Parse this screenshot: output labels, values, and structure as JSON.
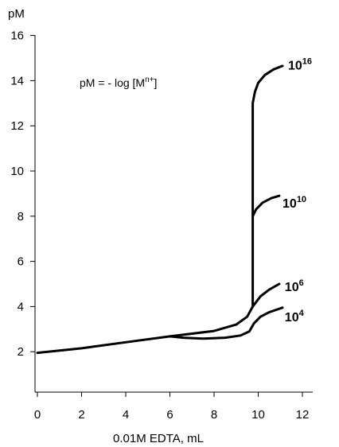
{
  "chart_data": {
    "type": "line",
    "title": "",
    "xlabel": "0.01M EDTA, mL",
    "ylabel": "pM",
    "xlim": [
      0,
      12.5
    ],
    "ylim": [
      0,
      16
    ],
    "x_ticks": [
      0,
      2,
      4,
      6,
      8,
      10,
      12
    ],
    "y_ticks": [
      2,
      4,
      6,
      8,
      10,
      12,
      14,
      16
    ],
    "grid": false,
    "annotation": {
      "prefix": "pM = - log [M",
      "sup": "n+",
      "suffix": "]"
    },
    "series": [
      {
        "label_base": "10",
        "label_exp": "16",
        "label_at": [
          11.35,
          14.7
        ],
        "points": [
          [
            0,
            1.95
          ],
          [
            2,
            2.15
          ],
          [
            4,
            2.42
          ],
          [
            6,
            2.68
          ],
          [
            7,
            2.8
          ],
          [
            8,
            2.92
          ],
          [
            9,
            3.2
          ],
          [
            9.5,
            3.55
          ],
          [
            9.75,
            4.0
          ],
          [
            9.75,
            13.0
          ],
          [
            9.85,
            13.5
          ],
          [
            10.0,
            13.9
          ],
          [
            10.3,
            14.25
          ],
          [
            10.7,
            14.5
          ],
          [
            11.1,
            14.65
          ]
        ]
      },
      {
        "label_base": "10",
        "label_exp": "10",
        "label_at": [
          11.1,
          8.6
        ],
        "points": [
          [
            9.75,
            8.0
          ],
          [
            9.9,
            8.3
          ],
          [
            10.2,
            8.6
          ],
          [
            10.6,
            8.8
          ],
          [
            10.95,
            8.9
          ]
        ]
      },
      {
        "label_base": "10",
        "label_exp": "6",
        "label_at": [
          11.2,
          4.9
        ],
        "points": [
          [
            9.75,
            4.0
          ],
          [
            10.1,
            4.45
          ],
          [
            10.5,
            4.75
          ],
          [
            10.95,
            5.0
          ]
        ]
      },
      {
        "label_base": "10",
        "label_exp": "4",
        "label_at": [
          11.2,
          3.55
        ],
        "points": [
          [
            6,
            2.68
          ],
          [
            6.6,
            2.62
          ],
          [
            7.5,
            2.58
          ],
          [
            8.5,
            2.62
          ],
          [
            9.2,
            2.72
          ],
          [
            9.6,
            2.9
          ],
          [
            9.8,
            3.25
          ],
          [
            10.1,
            3.55
          ],
          [
            10.5,
            3.75
          ],
          [
            11.1,
            3.95
          ]
        ]
      }
    ],
    "style": {
      "line_color": "#000000",
      "background": "#ffffff"
    }
  }
}
